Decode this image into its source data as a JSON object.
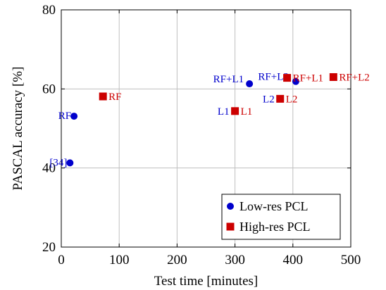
{
  "chart_data": {
    "type": "scatter",
    "xlabel": "Test time [minutes]",
    "ylabel": "PASCAL accuracy [%]",
    "xlim": [
      0,
      500
    ],
    "ylim": [
      20,
      80
    ],
    "x_ticks": [
      0,
      100,
      200,
      300,
      400,
      500
    ],
    "y_ticks": [
      20,
      40,
      60,
      80
    ],
    "grid": true,
    "legend_position": "bottom-right",
    "series": [
      {
        "name": "Low-res PCL",
        "marker": "circle",
        "color": "#0000cc",
        "points": [
          {
            "x": 15,
            "y": 41.3,
            "label": "[34]"
          },
          {
            "x": 22,
            "y": 53.1,
            "label": "RF"
          },
          {
            "x": 325,
            "y": 61.3,
            "label": "RF+L1"
          },
          {
            "x": 405,
            "y": 61.9,
            "label": "RF+L2"
          }
        ]
      },
      {
        "name": "High-res PCL",
        "marker": "square",
        "color": "#cc0000",
        "points": [
          {
            "x": 72,
            "y": 58.1,
            "label": "RF"
          },
          {
            "x": 300,
            "y": 54.4,
            "label": "L1"
          },
          {
            "x": 378,
            "y": 57.5,
            "label": "L2"
          },
          {
            "x": 390,
            "y": 62.8,
            "label": "RF+L1"
          },
          {
            "x": 470,
            "y": 63.0,
            "label": "RF+L2"
          }
        ]
      }
    ]
  }
}
